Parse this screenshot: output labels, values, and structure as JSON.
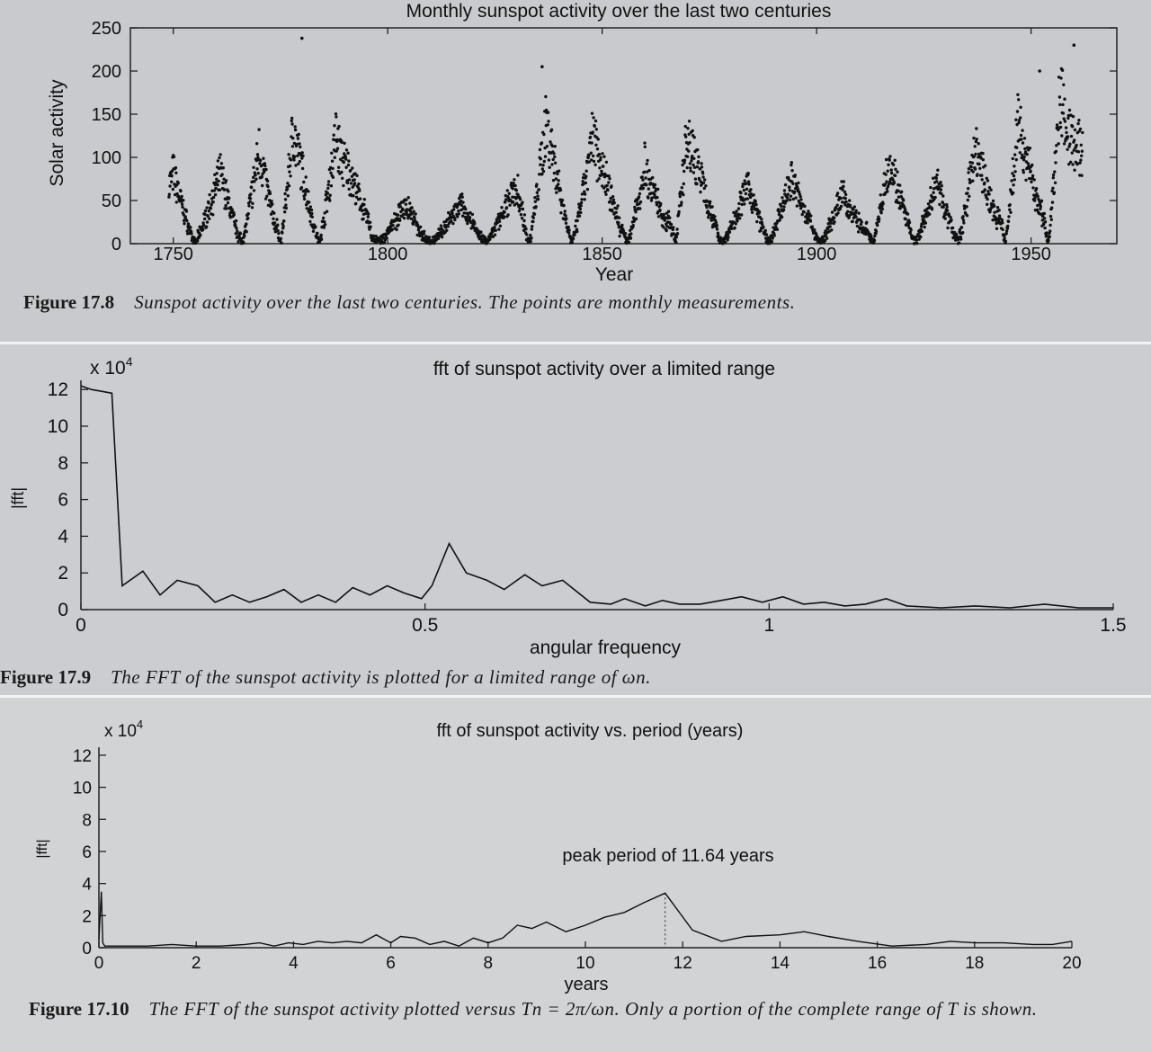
{
  "figures": [
    {
      "caption_label": "Figure 17.8",
      "caption_text": "Sunspot activity over the last two centuries. The points are monthly measurements."
    },
    {
      "caption_label": "Figure 17.9",
      "caption_text": "The FFT of the sunspot activity is plotted for a limited range of ωn."
    },
    {
      "caption_label": "Figure 17.10",
      "caption_text": "The FFT of the sunspot activity plotted versus Tn = 2π/ωn. Only a portion of the complete range of T is shown."
    }
  ],
  "chart_data": [
    {
      "type": "scatter",
      "title": "Monthly sunspot activity over the last two centuries",
      "xlabel": "Year",
      "ylabel": "Solar activity",
      "xlim": [
        1740,
        1970
      ],
      "ylim": [
        0,
        250
      ],
      "xticks": [
        "1750",
        "1800",
        "1850",
        "1900",
        "1950"
      ],
      "yticks": [
        "0",
        "50",
        "100",
        "150",
        "200",
        "250"
      ],
      "cycle_peaks": [
        {
          "year": 1750,
          "value": 90
        },
        {
          "year": 1761,
          "value": 90
        },
        {
          "year": 1770,
          "value": 120
        },
        {
          "year": 1778,
          "value": 150
        },
        {
          "year": 1788,
          "value": 140
        },
        {
          "year": 1804,
          "value": 50
        },
        {
          "year": 1817,
          "value": 50
        },
        {
          "year": 1830,
          "value": 80
        },
        {
          "year": 1837,
          "value": 160
        },
        {
          "year": 1848,
          "value": 140
        },
        {
          "year": 1860,
          "value": 100
        },
        {
          "year": 1870,
          "value": 150
        },
        {
          "year": 1884,
          "value": 75
        },
        {
          "year": 1894,
          "value": 85
        },
        {
          "year": 1906,
          "value": 65
        },
        {
          "year": 1917,
          "value": 110
        },
        {
          "year": 1928,
          "value": 80
        },
        {
          "year": 1937,
          "value": 125
        },
        {
          "year": 1947,
          "value": 165
        },
        {
          "year": 1957,
          "value": 205
        }
      ],
      "cycle_minima_years": [
        1755,
        1766,
        1775,
        1784,
        1798,
        1810,
        1823,
        1833,
        1843,
        1856,
        1867,
        1878,
        1889,
        1901,
        1913,
        1923,
        1933,
        1944,
        1954
      ],
      "outliers": [
        {
          "year": 1780,
          "value": 238
        },
        {
          "year": 1836,
          "value": 205
        },
        {
          "year": 1960,
          "value": 230
        },
        {
          "year": 1952,
          "value": 200
        }
      ],
      "last_year": 1962
    },
    {
      "type": "line",
      "title": "fft of sunspot activity over a limited range",
      "xlabel": "angular frequency",
      "ylabel": "|fft|",
      "y_multiplier": "x 10",
      "y_multiplier_exp": "4",
      "xlim": [
        0,
        1.5
      ],
      "ylim": [
        0,
        12.5
      ],
      "xticks": [
        "0",
        "0.5",
        "1",
        "1.5"
      ],
      "yticks": [
        "0",
        "2",
        "4",
        "6",
        "8",
        "10",
        "12"
      ],
      "x": [
        0.0,
        0.015,
        0.03,
        0.045,
        0.06,
        0.09,
        0.115,
        0.14,
        0.17,
        0.195,
        0.22,
        0.245,
        0.27,
        0.295,
        0.32,
        0.345,
        0.37,
        0.395,
        0.42,
        0.445,
        0.47,
        0.495,
        0.51,
        0.535,
        0.56,
        0.59,
        0.615,
        0.645,
        0.67,
        0.7,
        0.72,
        0.74,
        0.77,
        0.79,
        0.82,
        0.845,
        0.87,
        0.9,
        0.93,
        0.96,
        0.99,
        1.02,
        1.05,
        1.08,
        1.11,
        1.14,
        1.17,
        1.2,
        1.25,
        1.3,
        1.35,
        1.4,
        1.45,
        1.5
      ],
      "values": [
        12.2,
        12.0,
        11.9,
        11.8,
        1.3,
        2.1,
        0.8,
        1.6,
        1.3,
        0.4,
        0.8,
        0.4,
        0.7,
        1.1,
        0.4,
        0.8,
        0.4,
        1.2,
        0.8,
        1.3,
        0.9,
        0.6,
        1.3,
        3.6,
        2.0,
        1.6,
        1.1,
        1.9,
        1.3,
        1.6,
        1.0,
        0.4,
        0.3,
        0.6,
        0.2,
        0.5,
        0.3,
        0.3,
        0.5,
        0.7,
        0.4,
        0.7,
        0.3,
        0.4,
        0.2,
        0.3,
        0.6,
        0.2,
        0.1,
        0.2,
        0.1,
        0.3,
        0.1,
        0.1
      ]
    },
    {
      "type": "line",
      "title": "fft of sunspot activity vs. period (years)",
      "xlabel": "years",
      "ylabel": "|fft|",
      "y_multiplier": "x 10",
      "y_multiplier_exp": "4",
      "annotation": "peak period of 11.64 years",
      "peak_period": 11.64,
      "xlim": [
        0,
        20
      ],
      "ylim": [
        0,
        12.5
      ],
      "xticks": [
        "0",
        "2",
        "4",
        "6",
        "8",
        "10",
        "12",
        "14",
        "16",
        "18",
        "20"
      ],
      "yticks": [
        "0",
        "2",
        "4",
        "6",
        "8",
        "10",
        "12"
      ],
      "x": [
        0.0,
        0.05,
        0.08,
        0.12,
        0.5,
        1.0,
        1.5,
        2.0,
        2.5,
        3.0,
        3.3,
        3.6,
        3.9,
        4.2,
        4.5,
        4.8,
        5.1,
        5.4,
        5.7,
        6.0,
        6.2,
        6.5,
        6.8,
        7.1,
        7.4,
        7.7,
        8.0,
        8.3,
        8.6,
        8.9,
        9.2,
        9.6,
        10.0,
        10.4,
        10.8,
        11.2,
        11.64,
        12.2,
        12.8,
        13.3,
        14.0,
        14.5,
        15.0,
        15.6,
        16.3,
        17.0,
        17.5,
        18.0,
        18.6,
        19.2,
        19.6,
        20.0
      ],
      "values": [
        0.5,
        3.5,
        0.3,
        0.1,
        0.1,
        0.1,
        0.2,
        0.1,
        0.1,
        0.2,
        0.3,
        0.1,
        0.3,
        0.2,
        0.4,
        0.3,
        0.4,
        0.3,
        0.8,
        0.3,
        0.7,
        0.6,
        0.2,
        0.4,
        0.1,
        0.6,
        0.3,
        0.6,
        1.4,
        1.2,
        1.6,
        1.0,
        1.4,
        1.9,
        2.2,
        2.8,
        3.4,
        1.1,
        0.4,
        0.7,
        0.8,
        1.0,
        0.7,
        0.4,
        0.1,
        0.2,
        0.4,
        0.3,
        0.3,
        0.2,
        0.2,
        0.4
      ]
    }
  ]
}
